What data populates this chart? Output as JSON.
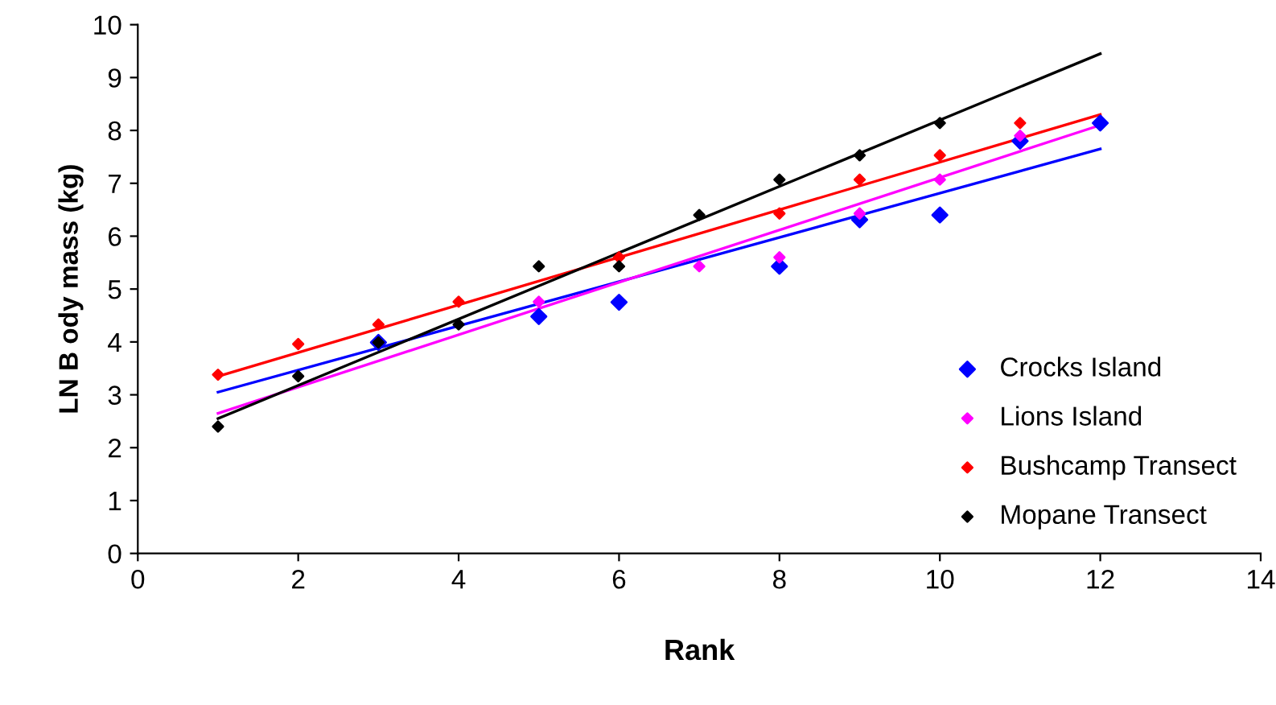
{
  "chart_data": {
    "type": "scatter",
    "xlabel": "Rank",
    "ylabel": "LN B ody mass (kg)",
    "xlim": [
      0,
      14
    ],
    "xticks": [
      0,
      2,
      4,
      6,
      8,
      10,
      12,
      14
    ],
    "ylim": [
      0,
      10
    ],
    "yticks": [
      0,
      1,
      2,
      3,
      4,
      5,
      6,
      7,
      8,
      9,
      10
    ],
    "grid": false,
    "legend": "bottom right",
    "marker": "diamond",
    "series": [
      {
        "name": "Crocks Island",
        "color": "#0000ff",
        "x": [
          3,
          5,
          6,
          8,
          9,
          10,
          11,
          12
        ],
        "values": [
          3.99,
          4.48,
          4.75,
          5.43,
          6.31,
          6.4,
          7.8,
          8.14
        ]
      },
      {
        "name": "Lions Island",
        "color": "#ff00ff",
        "x": [
          5,
          7,
          8,
          9,
          10,
          11
        ],
        "values": [
          4.76,
          5.43,
          5.6,
          6.43,
          7.07,
          7.9
        ]
      },
      {
        "name": "Bushcamp Transect",
        "color": "#ff0000",
        "x": [
          1,
          2,
          3,
          4,
          6,
          8,
          9,
          10,
          11
        ],
        "values": [
          3.38,
          3.96,
          4.33,
          4.76,
          5.6,
          6.43,
          7.07,
          7.53,
          8.14
        ]
      },
      {
        "name": "Mopane Transect",
        "color": "#000000",
        "x": [
          1,
          2,
          3,
          4,
          5,
          6,
          7,
          8,
          9,
          10
        ],
        "values": [
          2.4,
          3.35,
          3.99,
          4.33,
          5.43,
          5.43,
          6.4,
          7.07,
          7.53,
          8.14
        ]
      },
      {
        "type": "line",
        "marker": "none",
        "color": "#0000ff",
        "x": [
          1,
          12
        ],
        "values": [
          3.05,
          7.65
        ]
      },
      {
        "type": "line",
        "marker": "none",
        "color": "#ff00ff",
        "x": [
          1,
          12
        ],
        "values": [
          2.65,
          8.1
        ]
      },
      {
        "type": "line",
        "marker": "none",
        "color": "#ff0000",
        "x": [
          1,
          12
        ],
        "values": [
          3.35,
          8.3
        ]
      },
      {
        "type": "line",
        "marker": "none",
        "color": "#000000",
        "x": [
          1,
          12
        ],
        "values": [
          2.55,
          9.45
        ]
      }
    ]
  }
}
